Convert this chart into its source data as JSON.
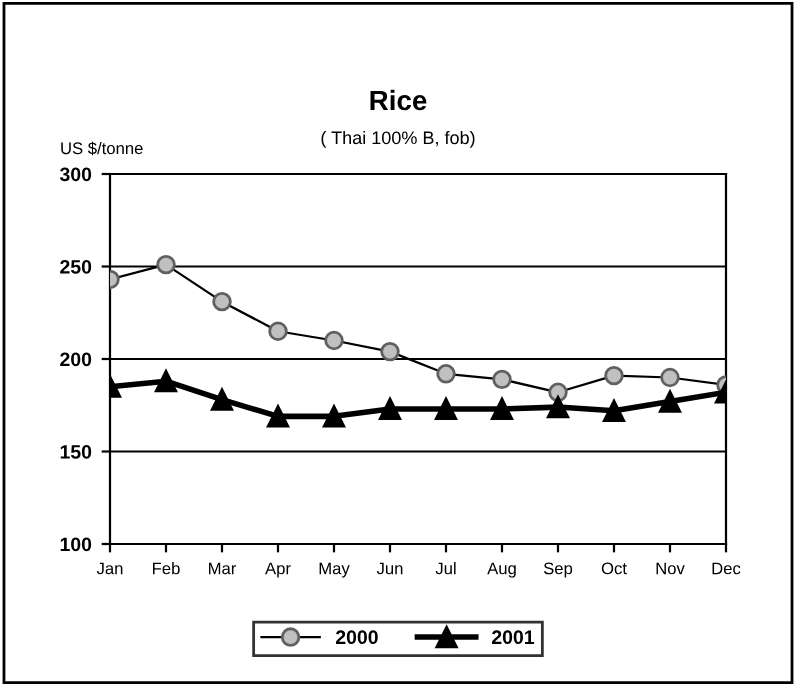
{
  "chart_data": {
    "type": "line",
    "title": "Rice",
    "subtitle": "( Thai 100% B, fob)",
    "ylabel": "US $/tonne",
    "categories": [
      "Jan",
      "Feb",
      "Mar",
      "Apr",
      "May",
      "Jun",
      "Jul",
      "Aug",
      "Sep",
      "Oct",
      "Nov",
      "Dec"
    ],
    "series": [
      {
        "name": "2000",
        "color": "#c0c0c0",
        "marker": "circle",
        "values": [
          243,
          251,
          231,
          215,
          210,
          204,
          192,
          189,
          182,
          191,
          190,
          186
        ]
      },
      {
        "name": "2001",
        "color": "#000000",
        "marker": "triangle",
        "values": [
          185,
          188,
          178,
          169,
          169,
          173,
          173,
          173,
          174,
          172,
          177,
          182
        ]
      }
    ],
    "ylim": [
      100,
      300
    ],
    "yticks": [
      100,
      150,
      200,
      250,
      300
    ],
    "grid": "y",
    "legend": "bottom"
  }
}
